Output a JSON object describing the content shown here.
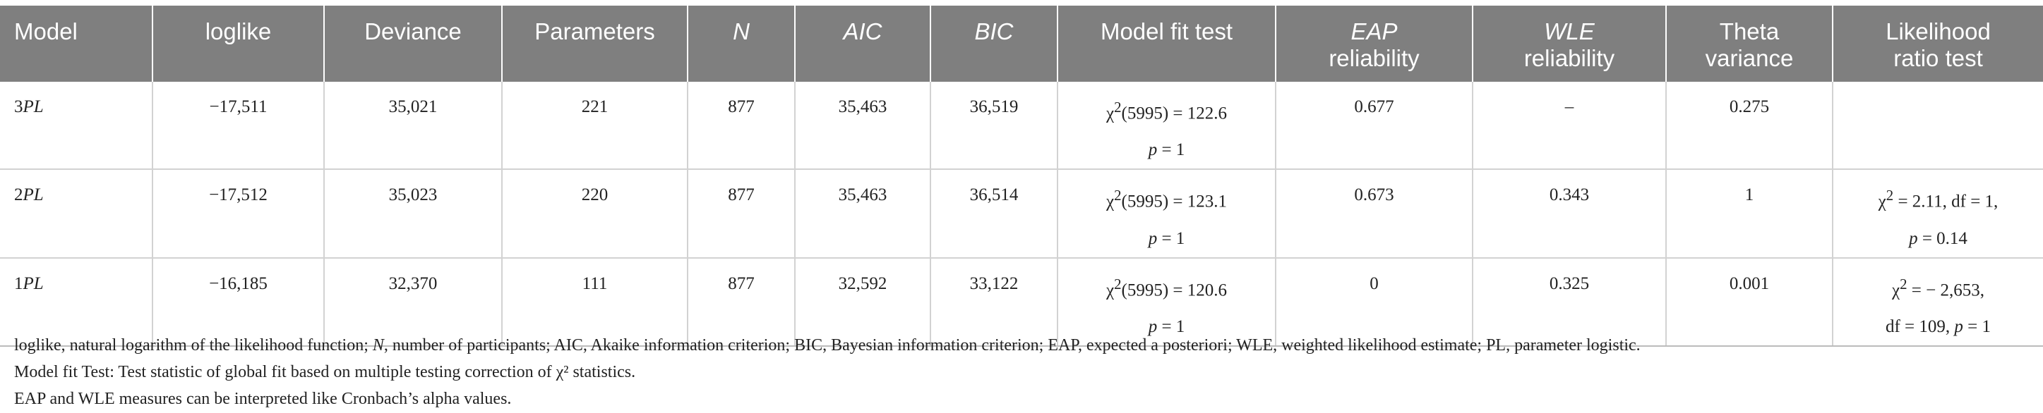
{
  "table": {
    "headers": [
      {
        "id": "model",
        "lines": [
          "Model"
        ],
        "italic": false
      },
      {
        "id": "loglike",
        "lines": [
          "loglike"
        ],
        "italic": false
      },
      {
        "id": "deviance",
        "lines": [
          "Deviance"
        ],
        "italic": false
      },
      {
        "id": "parameters",
        "lines": [
          "Parameters"
        ],
        "italic": false
      },
      {
        "id": "n",
        "lines": [
          "N"
        ],
        "italic": true
      },
      {
        "id": "aic",
        "lines": [
          "AIC"
        ],
        "italic": true
      },
      {
        "id": "bic",
        "lines": [
          "BIC"
        ],
        "italic": true
      },
      {
        "id": "model-fit-test",
        "lines": [
          "Model fit test"
        ],
        "italic": false
      },
      {
        "id": "eap-reliability",
        "lines": [
          "EAP",
          "reliability"
        ],
        "italic": false
      },
      {
        "id": "wle-reliability",
        "lines": [
          "WLE",
          "reliability"
        ],
        "italic": false
      },
      {
        "id": "theta-variance",
        "lines": [
          "Theta",
          "variance"
        ],
        "italic": false
      },
      {
        "id": "likelihood-ratio-test",
        "lines": [
          "Likelihood",
          "ratio test"
        ],
        "italic": false
      }
    ],
    "rows": [
      {
        "model_number": "3",
        "model_suffix": "PL",
        "loglike": "−17,511",
        "deviance": "35,021",
        "parameters": "221",
        "n": "877",
        "aic": "35,463",
        "bic": "36,519",
        "fit_stat": "(5995) = 122.6",
        "fit_p": "= 1",
        "eap": "0.677",
        "wle": "–",
        "theta": "0.275",
        "lrt_line1": "",
        "lrt_line2": ""
      },
      {
        "model_number": "2",
        "model_suffix": "PL",
        "loglike": "−17,512",
        "deviance": "35,023",
        "parameters": "220",
        "n": "877",
        "aic": "35,463",
        "bic": "36,514",
        "fit_stat": "(5995) = 123.1",
        "fit_p": "= 1",
        "eap": "0.673",
        "wle": "0.343",
        "theta": "1",
        "lrt_line1": "= 2.11, df = 1,",
        "lrt_line2": "= 0.14"
      },
      {
        "model_number": "1",
        "model_suffix": "PL",
        "loglike": "−16,185",
        "deviance": "32,370",
        "parameters": "111",
        "n": "877",
        "aic": "32,592",
        "bic": "33,122",
        "fit_stat": "(5995) = 120.6",
        "fit_p": "= 1",
        "eap": "0",
        "wle": "0.325",
        "theta": "0.001",
        "lrt_line1": "= − 2,653,",
        "lrt_line2": "df = 109,"
      }
    ]
  },
  "notes": {
    "line1_a": "loglike, natural logarithm of the likelihood function; ",
    "line1_n": "N",
    "line1_b": ", number of participants; AIC, Akaike information criterion; BIC, Bayesian information criterion; EAP, expected a posteriori; WLE, weighted likelihood estimate; PL, parameter logistic.",
    "line2": "Model fit Test: Test statistic of global fit based on multiple testing correction of χ² statistics.",
    "line3": "EAP and WLE measures can be interpreted like Cronbach’s alpha values."
  }
}
